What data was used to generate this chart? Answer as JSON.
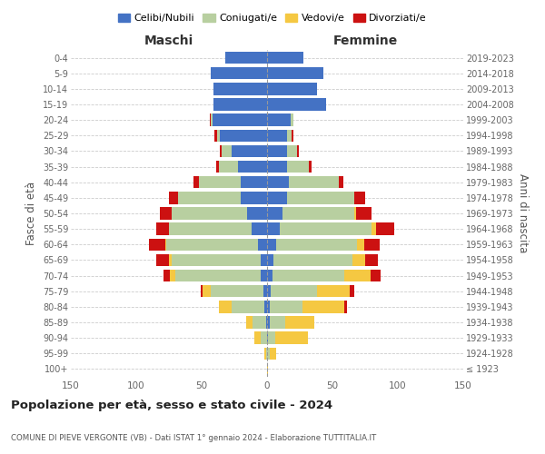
{
  "age_groups": [
    "100+",
    "95-99",
    "90-94",
    "85-89",
    "80-84",
    "75-79",
    "70-74",
    "65-69",
    "60-64",
    "55-59",
    "50-54",
    "45-49",
    "40-44",
    "35-39",
    "30-34",
    "25-29",
    "20-24",
    "15-19",
    "10-14",
    "5-9",
    "0-4"
  ],
  "birth_years": [
    "≤ 1923",
    "1924-1928",
    "1929-1933",
    "1934-1938",
    "1939-1943",
    "1944-1948",
    "1949-1953",
    "1954-1958",
    "1959-1963",
    "1964-1968",
    "1969-1973",
    "1974-1978",
    "1979-1983",
    "1984-1988",
    "1989-1993",
    "1994-1998",
    "1999-2003",
    "2004-2008",
    "2009-2013",
    "2014-2018",
    "2019-2023"
  ],
  "colors": {
    "celibe": "#4472c4",
    "coniugato": "#b8cfa0",
    "vedovo": "#f5c842",
    "divorziato": "#cc1111"
  },
  "maschi": {
    "celibe": [
      0,
      0,
      0,
      1,
      2,
      3,
      5,
      5,
      7,
      12,
      15,
      20,
      20,
      22,
      27,
      36,
      42,
      41,
      41,
      43,
      32
    ],
    "coniugato": [
      0,
      1,
      5,
      10,
      25,
      40,
      65,
      68,
      70,
      63,
      58,
      48,
      32,
      15,
      8,
      2,
      1,
      0,
      0,
      0,
      0
    ],
    "vedovo": [
      0,
      1,
      5,
      5,
      10,
      6,
      4,
      2,
      1,
      0,
      0,
      0,
      0,
      0,
      0,
      0,
      0,
      0,
      0,
      0,
      0
    ],
    "divorziato": [
      0,
      0,
      0,
      0,
      0,
      2,
      5,
      10,
      12,
      10,
      9,
      7,
      4,
      2,
      1,
      2,
      1,
      0,
      0,
      0,
      0
    ]
  },
  "femmine": {
    "nubile": [
      0,
      0,
      1,
      2,
      2,
      3,
      4,
      5,
      7,
      10,
      12,
      15,
      17,
      15,
      15,
      15,
      18,
      45,
      38,
      43,
      28
    ],
    "coniugata": [
      0,
      2,
      5,
      12,
      25,
      35,
      55,
      60,
      62,
      70,
      55,
      52,
      38,
      17,
      8,
      4,
      2,
      0,
      0,
      0,
      0
    ],
    "vedova": [
      1,
      5,
      25,
      22,
      32,
      25,
      20,
      10,
      5,
      3,
      1,
      0,
      0,
      0,
      0,
      0,
      0,
      0,
      0,
      0,
      0
    ],
    "divorziata": [
      0,
      0,
      0,
      0,
      2,
      4,
      8,
      10,
      12,
      14,
      12,
      8,
      3,
      2,
      1,
      1,
      0,
      0,
      0,
      0,
      0
    ]
  },
  "title": "Popolazione per età, sesso e stato civile - 2024",
  "subtitle": "COMUNE DI PIEVE VERGONTE (VB) - Dati ISTAT 1° gennaio 2024 - Elaborazione TUTTITALIA.IT",
  "xlabel_maschi": "Maschi",
  "xlabel_femmine": "Femmine",
  "ylabel_left": "Fasce di età",
  "ylabel_right": "Anni di nascita",
  "xlim": 150,
  "legend_labels": [
    "Celibi/Nubili",
    "Coniugati/e",
    "Vedovi/e",
    "Divorziati/e"
  ]
}
